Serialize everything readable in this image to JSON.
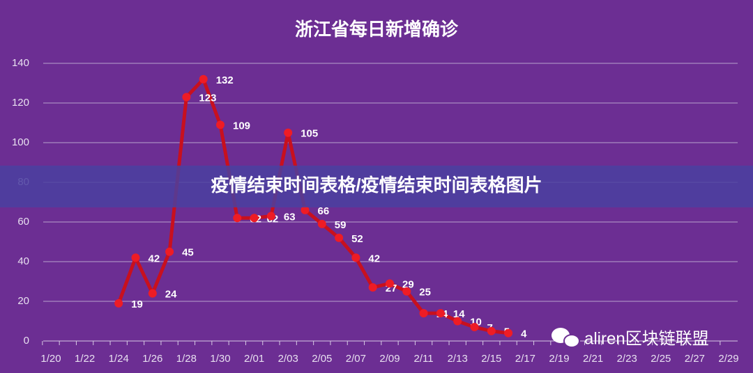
{
  "chart_data": {
    "type": "line",
    "title": "浙江省每日新增确诊",
    "categories": [
      "1/20",
      null,
      "1/22",
      null,
      "1/24",
      null,
      "1/26",
      null,
      "1/28",
      null,
      "1/30",
      null,
      "2/01",
      null,
      "2/03",
      null,
      "2/05",
      null,
      "2/07",
      null,
      "2/09",
      null,
      "2/11",
      null,
      "2/13",
      null,
      "2/15",
      null,
      "2/17",
      null,
      "2/19",
      null,
      "2/21",
      null,
      "2/23",
      null,
      "2/25",
      null,
      "2/27",
      null,
      "2/29"
    ],
    "series": [
      {
        "name": "浙江省每日新增确诊",
        "color": "#c8101e",
        "values": [
          null,
          null,
          null,
          null,
          19,
          42,
          24,
          45,
          123,
          132,
          109,
          62,
          62,
          63,
          105,
          66,
          59,
          52,
          42,
          27,
          29,
          25,
          14,
          14,
          10,
          7,
          5,
          4,
          null,
          null,
          null,
          null,
          null,
          null,
          null,
          null,
          null,
          null,
          null,
          null,
          null
        ]
      }
    ],
    "ylim": [
      0,
      140
    ],
    "yticks": [
      0,
      20,
      40,
      60,
      80,
      100,
      120,
      140
    ],
    "grid": true
  },
  "banner": "疫情结束时间表格/疫情结束时间表格图片",
  "watermark": "aliren区块链联盟"
}
